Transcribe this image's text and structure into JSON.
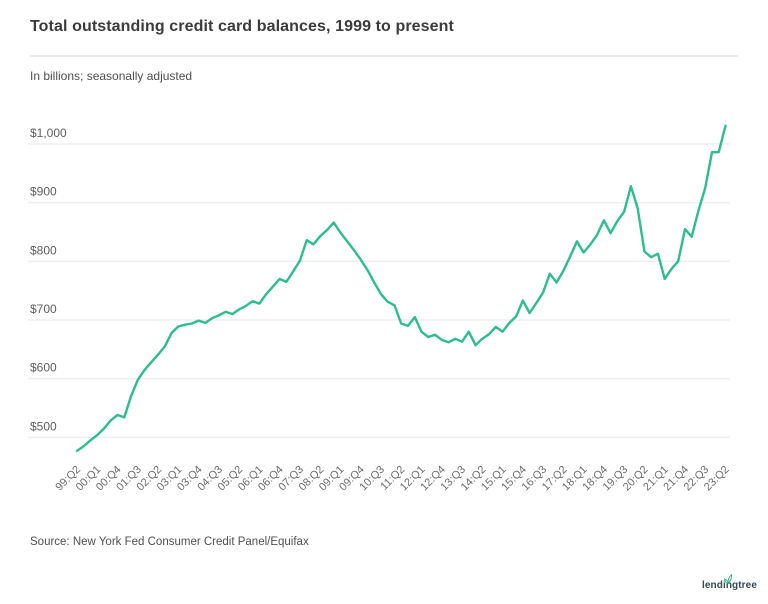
{
  "header": {
    "title": "Total outstanding credit card balances, 1999 to present",
    "subtitle": "In billions; seasonally adjusted"
  },
  "footer": {
    "source": "Source: New York Fed Consumer Credit Panel/Equifax",
    "logo_text": "lendingtree"
  },
  "colors": {
    "line": "#2ebd8c",
    "gridline": "#e7e7e7",
    "axis_label": "#6b6b6b",
    "y_label": "#5f5f5f",
    "title": "#3b3b3b",
    "body_text": "#4f4f4f",
    "divider": "#e9e9e9",
    "logo_text": "#2e4b55",
    "logo_leaf": "#2aae7e"
  },
  "chart_data": {
    "type": "line",
    "title": "Total outstanding credit card balances, 1999 to present",
    "subtitle": "In billions; seasonally adjusted",
    "series_name": "Total outstanding credit card balances ($B)",
    "frequency": "quarterly",
    "x_start": "1999:Q2",
    "x_end": "2023:Q2",
    "x_tick_every": 3,
    "x_tick_labels": [
      "99:Q2",
      "00:Q1",
      "00:Q4",
      "01:Q3",
      "02:Q2",
      "03:Q1",
      "03:Q4",
      "04:Q3",
      "05:Q2",
      "06:Q1",
      "06:Q4",
      "07:Q3",
      "08:Q2",
      "09:Q1",
      "09:Q4",
      "10:Q3",
      "11:Q2",
      "12:Q1",
      "12:Q4",
      "13:Q3",
      "14:Q2",
      "15:Q1",
      "15:Q4",
      "16:Q3",
      "17:Q2",
      "18:Q1",
      "18:Q4",
      "19:Q3",
      "20:Q2",
      "21:Q1",
      "21:Q4",
      "22:Q3",
      "23:Q2"
    ],
    "values": [
      477,
      485,
      495,
      504,
      515,
      529,
      538,
      534,
      570,
      598,
      615,
      628,
      641,
      655,
      678,
      689,
      692,
      694,
      699,
      695,
      703,
      708,
      714,
      710,
      718,
      724,
      732,
      728,
      744,
      757,
      770,
      765,
      783,
      801,
      836,
      829,
      843,
      853,
      866,
      849,
      834,
      819,
      803,
      785,
      764,
      744,
      731,
      725,
      694,
      690,
      705,
      680,
      671,
      675,
      666,
      662,
      668,
      663,
      680,
      657,
      668,
      676,
      688,
      680,
      695,
      706,
      733,
      712,
      729,
      747,
      779,
      764,
      784,
      808,
      834,
      815,
      829,
      845,
      870,
      848,
      869,
      885,
      928,
      890,
      817,
      807,
      813,
      770,
      787,
      800,
      855,
      842,
      887,
      925,
      986,
      986,
      1031
    ],
    "yticks": [
      500,
      600,
      700,
      800,
      900,
      1000
    ],
    "ytick_labels": [
      "$500",
      "$600",
      "$700",
      "$800",
      "$900",
      "$1,000"
    ],
    "ylim": [
      450,
      1060
    ],
    "grid": "horizontal",
    "legend": "none",
    "line_color": "#2ebd8c"
  }
}
